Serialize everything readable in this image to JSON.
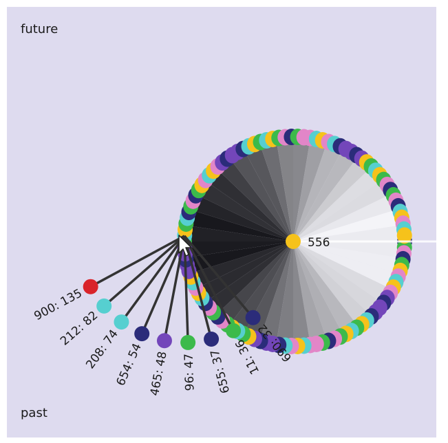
{
  "labels": {
    "top": "future",
    "bottom": "past"
  },
  "center_node": {
    "label": "556",
    "color": "#f6c21b"
  },
  "colors": {
    "background": "#dedbef",
    "navy": "#2b2c7a",
    "green": "#3cba4b",
    "purple": "#7346ba",
    "cyan": "#56cfd0",
    "red": "#d9232a",
    "pink": "#e286c8",
    "yellow": "#f6c21b"
  },
  "ring_palette": [
    "navy",
    "green",
    "purple",
    "cyan",
    "pink",
    "yellow",
    "navy",
    "pink",
    "green",
    "cyan",
    "purple",
    "yellow"
  ],
  "linked_nodes": [
    {
      "label": "690: 32",
      "color": "navy"
    },
    {
      "label": "11: 36",
      "color": "green"
    },
    {
      "label": "655: 37",
      "color": "navy"
    },
    {
      "label": "96: 47",
      "color": "green"
    },
    {
      "label": "465: 48",
      "color": "purple"
    },
    {
      "label": "654: 54",
      "color": "navy"
    },
    {
      "label": "208: 74",
      "color": "cyan"
    },
    {
      "label": "212: 82",
      "color": "cyan"
    },
    {
      "label": "900: 135",
      "color": "red"
    }
  ]
}
